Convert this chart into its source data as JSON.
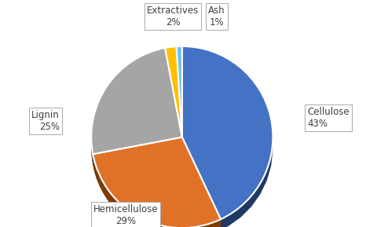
{
  "labels": [
    "Cellulose",
    "Hemicellulose",
    "Lignin",
    "Extractives",
    "Ash"
  ],
  "pct_labels": [
    "43%",
    "29%",
    "25%",
    "2%",
    "1%"
  ],
  "sizes": [
    43,
    29,
    25,
    2,
    1
  ],
  "colors": [
    "#4472C4",
    "#E07228",
    "#A5A5A5",
    "#FFC000",
    "#70C0E8"
  ],
  "dark_colors": [
    "#1F3864",
    "#7E3D05",
    "#666666",
    "#996600",
    "#3A7AAA"
  ],
  "edge_color": "#FFFFFF",
  "background_color": "#FFFFFF",
  "label_fontsize": 8.5,
  "startangle": 90,
  "depth": 0.12,
  "fig_width": 4.81,
  "fig_height": 2.89,
  "dpi": 100
}
